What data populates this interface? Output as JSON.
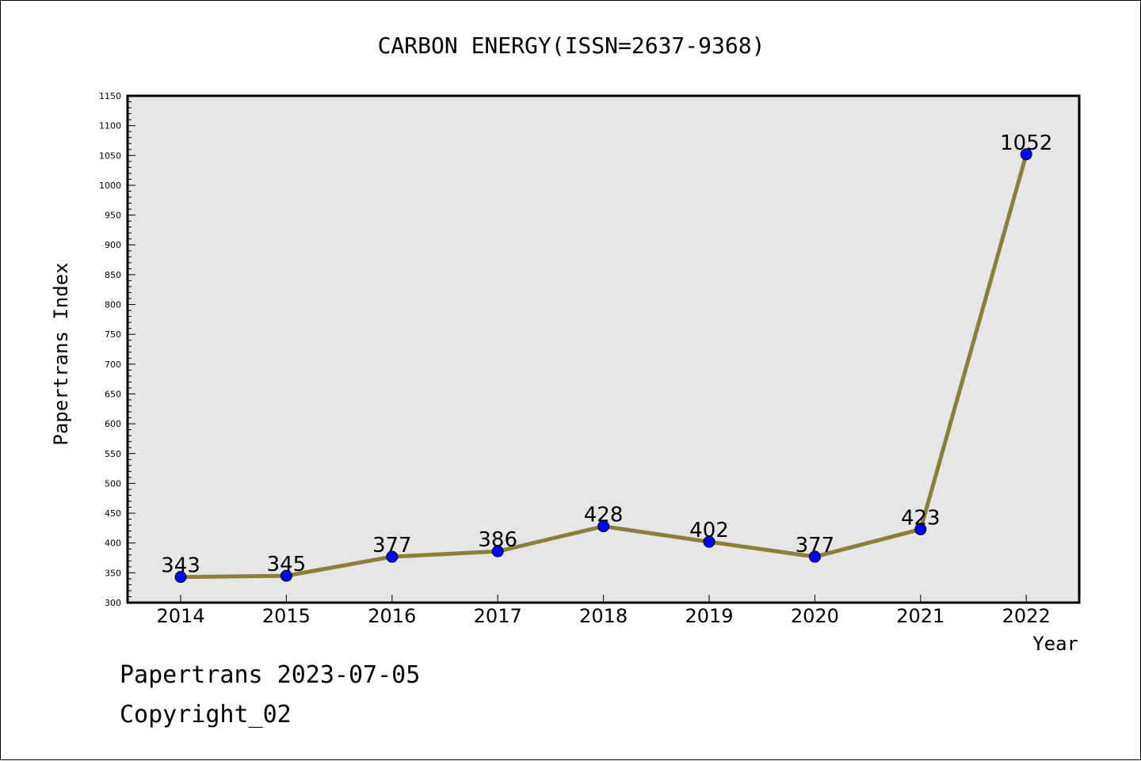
{
  "chart_data": {
    "type": "line",
    "title": "CARBON ENERGY(ISSN=2637-9368)",
    "xlabel": "Year",
    "ylabel": "Papertrans Index",
    "categories": [
      "2014",
      "2015",
      "2016",
      "2017",
      "2018",
      "2019",
      "2020",
      "2021",
      "2022"
    ],
    "series": [
      {
        "values": [
          343,
          345,
          377,
          386,
          428,
          402,
          377,
          423,
          1052
        ]
      }
    ],
    "ylim": [
      300,
      1150
    ],
    "yticks": [
      "300",
      "350",
      "400",
      "450",
      "500",
      "550",
      "600",
      "650",
      "700",
      "750",
      "800",
      "850",
      "900",
      "950",
      "1000",
      "1050",
      "1100",
      "1150"
    ],
    "data_labels": [
      "343",
      "345",
      "377",
      "386",
      "428",
      "402",
      "377",
      "423",
      "1052"
    ],
    "grid": false,
    "legend": "none",
    "colors": {
      "line": "#8b7d3a",
      "marker": "#0000ff",
      "plot_bg": "#e6e6e6",
      "frame": "#000000"
    }
  },
  "footer": {
    "line1": "Papertrans 2023-07-05",
    "line2": "Copyright_02"
  }
}
